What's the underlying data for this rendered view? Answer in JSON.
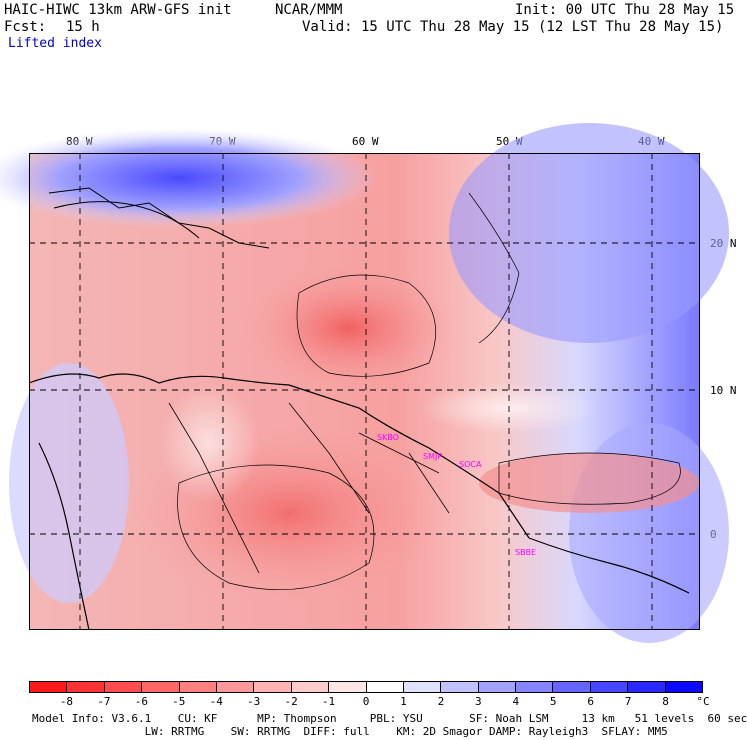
{
  "header": {
    "model": "HAIC-HIWC 13km ARW-GFS init",
    "org": "NCAR/MMM",
    "init": "Init: 00 UTC Thu 28 May 15",
    "fcst_label": "Fcst:",
    "fcst_value": "15 h",
    "valid": "Valid: 15 UTC Thu 28 May 15 (12 LST Thu 28 May 15)",
    "field": "Lifted index"
  },
  "map": {
    "longitudes": [
      "80 W",
      "70 W",
      "60 W",
      "50 W",
      "40 W"
    ],
    "latitudes": [
      "20 N",
      "10 N",
      "0"
    ],
    "sites": [
      "SKBO",
      "SMJP",
      "SOCA",
      "SBBE"
    ]
  },
  "colorbar": {
    "unit": "°C",
    "labels": [
      "-8",
      "-7",
      "-6",
      "-5",
      "-4",
      "-3",
      "-2",
      "-1",
      "0",
      "1",
      "2",
      "3",
      "4",
      "5",
      "6",
      "7",
      "8"
    ],
    "colors": [
      "#ff1a1a",
      "#ff3333",
      "#ff4d4d",
      "#ff6666",
      "#ff8080",
      "#ff9999",
      "#ffb3b3",
      "#ffcccc",
      "#ffe6e6",
      "#ffffff",
      "#e0e0ff",
      "#c2c2ff",
      "#a3a3ff",
      "#8585ff",
      "#6666ff",
      "#4747ff",
      "#2929ff",
      "#0a0aff"
    ]
  },
  "footer": {
    "line1": "Model Info: V3.6.1    CU: KF      MP: Thompson     PBL: YSU       SF: Noah LSM     13 km   51 levels  60 sec",
    "line2": "                 LW: RRTMG    SW: RRTMG  DIFF: full    KM: 2D Smagor DAMP: Rayleigh3  SFLAY: MM5"
  }
}
